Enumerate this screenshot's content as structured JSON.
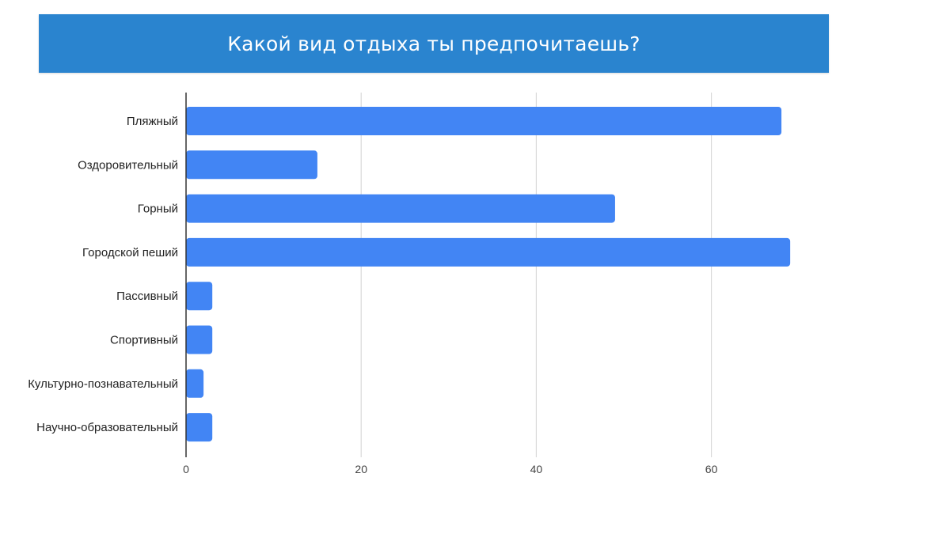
{
  "title": "Какой вид отдыха ты предпочитаешь?",
  "colors": {
    "banner": "#2a84cf",
    "bar": "#4285f4",
    "grid": "#d9d9d9",
    "axis": "#333333"
  },
  "chart_data": {
    "type": "bar",
    "orientation": "horizontal",
    "title": "Какой вид отдыха ты предпочитаешь?",
    "xlabel": "",
    "ylabel": "",
    "categories": [
      "Пляжный",
      "Оздоровительный",
      "Горный",
      "Городской пеший",
      "Пассивный",
      "Спортивный",
      "Культурно-познавательный",
      "Научно-образовательный"
    ],
    "values": [
      68,
      15,
      49,
      69,
      3,
      3,
      2,
      3
    ],
    "xlim": [
      0,
      75
    ],
    "xticks": [
      0,
      20,
      40,
      60
    ],
    "grid": "vertical",
    "legend": "none"
  }
}
